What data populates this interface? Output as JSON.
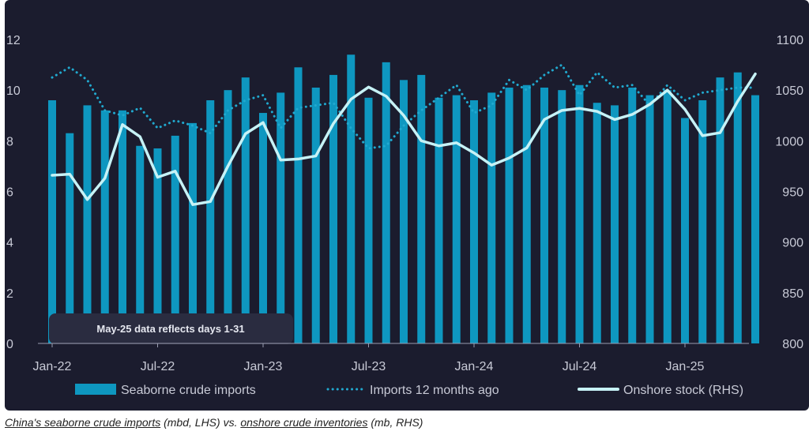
{
  "colors": {
    "background": "#1b1c2e",
    "bars": "#0e97c0",
    "dotted": "#21a9cf",
    "line": "#c6f2f6",
    "text": "#c8cad6",
    "annotation_bg": "#2a2c40"
  },
  "chart_data": {
    "type": "bar",
    "categories": [
      "Jan-22",
      "Feb-22",
      "Mar-22",
      "Apr-22",
      "May-22",
      "Jun-22",
      "Jul-22",
      "Aug-22",
      "Sep-22",
      "Oct-22",
      "Nov-22",
      "Dec-22",
      "Jan-23",
      "Feb-23",
      "Mar-23",
      "Apr-23",
      "May-23",
      "Jun-23",
      "Jul-23",
      "Aug-23",
      "Sep-23",
      "Oct-23",
      "Nov-23",
      "Dec-23",
      "Jan-24",
      "Feb-24",
      "Mar-24",
      "Apr-24",
      "May-24",
      "Jun-24",
      "Jul-24",
      "Aug-24",
      "Sep-24",
      "Oct-24",
      "Nov-24",
      "Dec-24",
      "Jan-25",
      "Feb-25",
      "Mar-25",
      "Apr-25",
      "May-25"
    ],
    "x_tick_labels": [
      "Jan-22",
      "Jul-22",
      "Jan-23",
      "Jul-23",
      "Jan-24",
      "Jul-24",
      "Jan-25"
    ],
    "x_tick_indices": [
      0,
      6,
      12,
      18,
      24,
      30,
      36
    ],
    "series": [
      {
        "name": "Seaborne crude imports",
        "kind": "bar",
        "axis": "left",
        "values": [
          9.6,
          8.3,
          9.4,
          9.2,
          9.2,
          7.8,
          7.7,
          8.2,
          8.7,
          9.6,
          10.0,
          10.5,
          9.1,
          9.9,
          10.9,
          10.1,
          10.6,
          11.4,
          9.7,
          11.1,
          10.4,
          10.6,
          9.7,
          9.8,
          9.6,
          9.9,
          10.1,
          10.2,
          10.1,
          10.0,
          10.2,
          9.5,
          9.4,
          10.1,
          9.8,
          10.0,
          8.9,
          9.6,
          10.5,
          10.7,
          9.8
        ]
      },
      {
        "name": "Imports 12 months ago",
        "kind": "dotted-line",
        "axis": "left",
        "values": [
          10.5,
          10.9,
          10.4,
          9.2,
          9.0,
          9.3,
          8.5,
          8.8,
          8.6,
          8.3,
          9.2,
          9.6,
          9.8,
          8.5,
          9.3,
          9.4,
          9.5,
          8.5,
          7.7,
          7.8,
          8.6,
          9.2,
          9.7,
          10.2,
          9.1,
          9.4,
          10.4,
          10.0,
          10.6,
          11.0,
          9.8,
          10.7,
          10.1,
          10.2,
          9.4,
          10.2,
          9.6,
          9.9,
          10.0,
          10.1,
          10.1
        ]
      },
      {
        "name": "Onshore stock (RHS)",
        "kind": "line",
        "axis": "right",
        "values": [
          966,
          967,
          942,
          963,
          1016,
          1004,
          964,
          970,
          937,
          940,
          975,
          1007,
          1018,
          981,
          982,
          985,
          1017,
          1041,
          1053,
          1044,
          1025,
          1000,
          995,
          998,
          988,
          976,
          983,
          993,
          1021,
          1030,
          1032,
          1029,
          1021,
          1026,
          1036,
          1050,
          1031,
          1005,
          1008,
          1039,
          1066
        ]
      }
    ],
    "left_axis": {
      "ylim": [
        0,
        12
      ],
      "ticks": [
        "0",
        "2",
        "4",
        "6",
        "8",
        "10",
        "12"
      ]
    },
    "right_axis": {
      "ylim": [
        800,
        1100
      ],
      "ticks": [
        "800",
        "850",
        "900",
        "950",
        "1000",
        "1050",
        "1100"
      ]
    },
    "legend": [
      {
        "label": "Seaborne crude imports",
        "style": "bar"
      },
      {
        "label": "Imports 12 months ago",
        "style": "dotted"
      },
      {
        "label": "Onshore stock (RHS)",
        "style": "line"
      }
    ],
    "legend_position": "bottom",
    "annotation": "May-25 data reflects days 1-31",
    "grid": false
  },
  "caption": {
    "part1": "China's seaborne crude imports",
    "part2": " (mbd, LHS) vs. ",
    "part3": "onshore crude inventories",
    "part4": " (mb, RHS)"
  }
}
